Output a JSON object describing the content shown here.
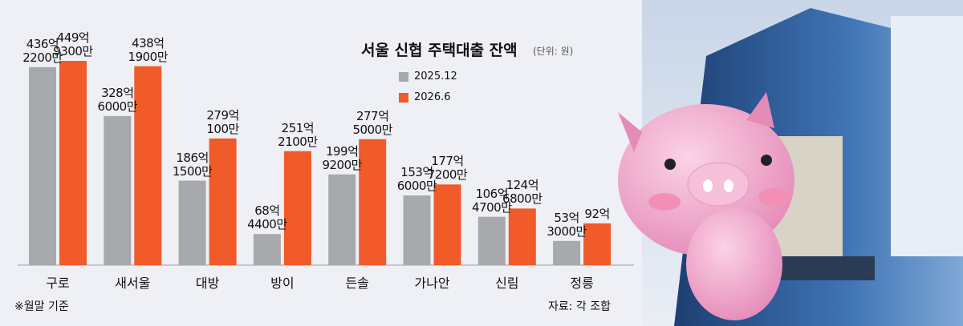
{
  "chart_data": {
    "type": "bar",
    "title": "서울 신협 주택대출 잔액",
    "subtitle": "(단위: 원)",
    "note": "※월말 기준",
    "source": "자료: 각 조합",
    "categories": [
      "구로",
      "새서울",
      "대방",
      "방이",
      "든솔",
      "가나안",
      "신림",
      "정릉"
    ],
    "ylim": [
      0,
      45000000000
    ],
    "series": [
      {
        "name": "2025.12",
        "color": "#a7a9ac",
        "values": [
          43622000000,
          32860000000,
          18615000000,
          6844000000,
          19992000000,
          15360000000,
          10647000000,
          5330000000
        ],
        "value_labels": [
          "436억\n2200만",
          "328억\n6000만",
          "186억\n1500만",
          "68억\n4400만",
          "199억\n9200만",
          "153억\n6000만",
          "106억\n4700만",
          "53억\n3000만"
        ]
      },
      {
        "name": "2026.6",
        "color": "#f15a29",
        "values": [
          44993000000,
          43819000000,
          27901000000,
          25121000000,
          27750000000,
          17772000000,
          12468000000,
          9200000000
        ],
        "value_labels": [
          "449억\n9300만",
          "438억\n1900만",
          "279억\n100만",
          "251억\n2100만",
          "277억\n5000만",
          "177억\n7200만",
          "124억\n6800만",
          "92억"
        ]
      }
    ]
  }
}
